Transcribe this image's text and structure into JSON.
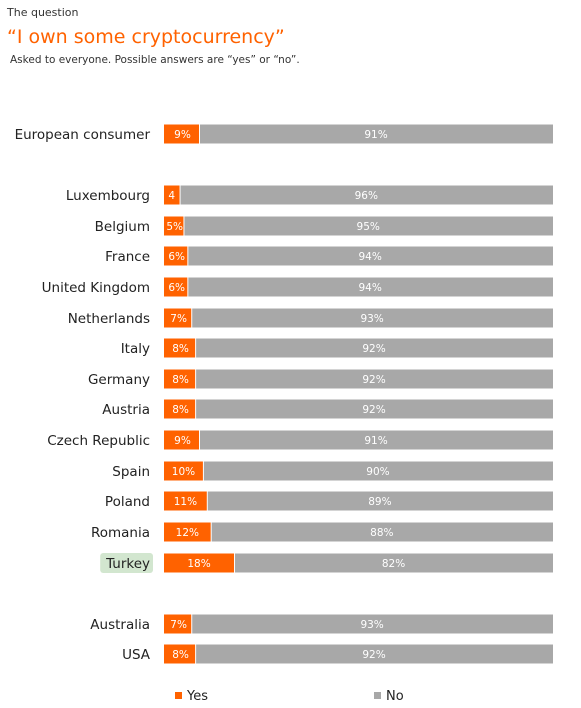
{
  "header": {
    "kicker": "The question",
    "title": "“I own some cryptocurrency”",
    "subtitle": "Asked to everyone. Possible answers are “yes” or “no”."
  },
  "colors": {
    "yes": "#ff6200",
    "no": "#a8a8a8",
    "highlight": "#d2e6cf"
  },
  "chart_data": {
    "type": "bar",
    "orientation": "horizontal",
    "stacked": true,
    "xlim": [
      0,
      100
    ],
    "highlighted_category": "Turkey",
    "categories": [
      "European consumer",
      "Luxembourg",
      "Belgium",
      "France",
      "United Kingdom",
      "Netherlands",
      "Italy",
      "Germany",
      "Austria",
      "Czech Republic",
      "Spain",
      "Poland",
      "Romania",
      "Turkey",
      "Australia",
      "USA"
    ],
    "series": [
      {
        "name": "Yes",
        "values": [
          9,
          4,
          5,
          6,
          6,
          7,
          8,
          8,
          8,
          9,
          10,
          11,
          12,
          18,
          7,
          8
        ],
        "labels": [
          "9%",
          "4",
          "5%",
          "6%",
          "6%",
          "7%",
          "8%",
          "8%",
          "8%",
          "9%",
          "10%",
          "11%",
          "12%",
          "18%",
          "7%",
          "8%"
        ]
      },
      {
        "name": "No",
        "values": [
          91,
          96,
          95,
          94,
          94,
          93,
          92,
          92,
          92,
          91,
          90,
          89,
          88,
          82,
          93,
          92
        ],
        "labels": [
          "91%",
          "96%",
          "95%",
          "94%",
          "94%",
          "93%",
          "92%",
          "92%",
          "92%",
          "91%",
          "90%",
          "89%",
          "88%",
          "82%",
          "93%",
          "92%"
        ]
      }
    ],
    "legend_position": "bottom",
    "grid": false
  }
}
